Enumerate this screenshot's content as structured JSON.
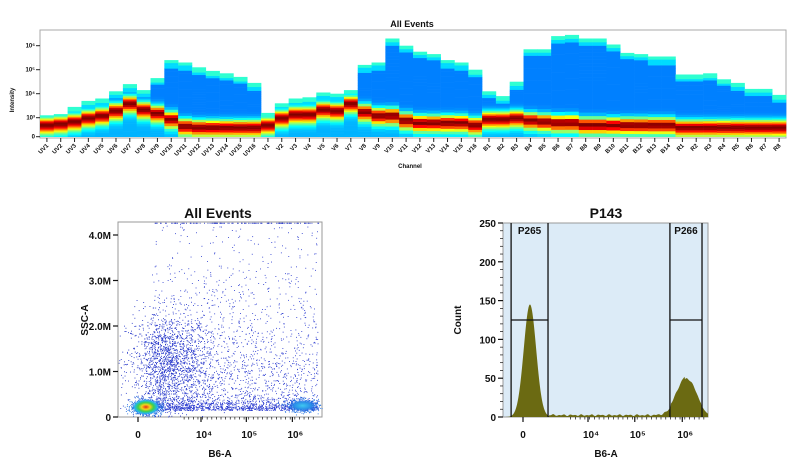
{
  "chart_data": [
    {
      "type": "heatmap",
      "title": "All Events",
      "xlabel": "Channel",
      "ylabel": "Intensity",
      "y_scale": "log",
      "y_ticks": [
        "0",
        "10³",
        "10⁴",
        "10⁵",
        "10⁶"
      ],
      "colormap": "jet",
      "channels": [
        "UV1",
        "UV2",
        "UV3",
        "UV4",
        "UV5",
        "UV6",
        "UV7",
        "UV8",
        "UV9",
        "UV10",
        "UV11",
        "UV12",
        "UV13",
        "UV14",
        "UV15",
        "UV16",
        "V1",
        "V2",
        "V3",
        "V4",
        "V5",
        "V6",
        "V7",
        "V8",
        "V9",
        "V10",
        "V11",
        "V12",
        "V13",
        "V14",
        "V15",
        "V16",
        "B1",
        "B2",
        "B3",
        "B4",
        "B5",
        "B6",
        "B7",
        "B8",
        "B9",
        "B10",
        "B11",
        "B12",
        "B13",
        "B14",
        "R1",
        "R2",
        "R3",
        "R4",
        "R5",
        "R6",
        "R7",
        "R8"
      ],
      "max_log10_intensity": [
        3.1,
        3.15,
        3.45,
        3.7,
        3.8,
        4.1,
        4.4,
        4.15,
        4.65,
        5.4,
        5.3,
        5.1,
        4.95,
        4.85,
        4.7,
        4.45,
        3.2,
        3.6,
        3.8,
        3.85,
        4.05,
        4.0,
        4.15,
        5.2,
        5.3,
        6.3,
        6.0,
        5.75,
        5.65,
        5.4,
        5.3,
        5.0,
        4.1,
        3.9,
        4.5,
        5.85,
        5.85,
        6.4,
        6.45,
        6.3,
        6.3,
        6.05,
        5.7,
        5.65,
        5.55,
        5.55,
        4.8,
        4.8,
        4.85,
        4.6,
        4.45,
        4.2,
        4.2,
        3.95
      ],
      "peak_log10_intensity": [
        2.7,
        2.75,
        2.85,
        3.0,
        3.1,
        3.3,
        3.6,
        3.35,
        3.2,
        2.95,
        2.65,
        2.6,
        2.6,
        2.6,
        2.6,
        2.6,
        2.7,
        3.0,
        3.15,
        3.15,
        3.35,
        3.3,
        3.6,
        3.25,
        3.1,
        3.1,
        2.9,
        2.8,
        2.8,
        2.8,
        2.8,
        2.7,
        2.95,
        2.95,
        3.0,
        2.9,
        2.85,
        2.8,
        2.8,
        2.7,
        2.7,
        2.7,
        2.7,
        2.7,
        2.7,
        2.7,
        2.6,
        2.6,
        2.6,
        2.6,
        2.6,
        2.6,
        2.6,
        2.6
      ]
    },
    {
      "type": "scatter",
      "title": "All Events",
      "xlabel": "B6-A",
      "ylabel": "SSC-A",
      "x_scale": "biexponential",
      "x_ticks": [
        {
          "label": "0",
          "value": 0
        },
        {
          "label": "10⁴",
          "value": 10000
        },
        {
          "label": "10⁵",
          "value": 100000
        },
        {
          "label": "10⁶",
          "value": 1000000
        }
      ],
      "y_ticks": [
        {
          "label": "0",
          "value": 0
        },
        {
          "label": "1.0M",
          "value": 1000000
        },
        {
          "label": "2.0M",
          "value": 2000000
        },
        {
          "label": "3.0M",
          "value": 3000000
        },
        {
          "label": "4.0M",
          "value": 4000000
        }
      ],
      "xlim": [
        -790,
        4500000
      ],
      "ylim": [
        0,
        4200000
      ],
      "populations": [
        {
          "x": 216,
          "y": 220000,
          "density": "high"
        },
        {
          "x": 1670000,
          "y": 250000,
          "density": "medium"
        },
        {
          "x": 1500,
          "y": 1200000,
          "density": "diffuse"
        }
      ]
    },
    {
      "type": "area",
      "title": "P143",
      "xlabel": "B6-A",
      "ylabel": "Count",
      "x_scale": "biexponential",
      "x_ticks": [
        {
          "label": "0",
          "value": 0
        },
        {
          "label": "10⁴",
          "value": 10000
        },
        {
          "label": "10⁵",
          "value": 100000
        },
        {
          "label": "10⁶",
          "value": 1000000
        }
      ],
      "y_ticks": [
        {
          "label": "0",
          "value": 0
        },
        {
          "label": "50",
          "value": 50
        },
        {
          "label": "100",
          "value": 100
        },
        {
          "label": "150",
          "value": 150
        },
        {
          "label": "200",
          "value": 200
        },
        {
          "label": "250",
          "value": 250
        }
      ],
      "xlim": [
        -740,
        3500000
      ],
      "ylim": [
        0,
        250
      ],
      "peaks": [
        {
          "x": 180,
          "count": 145
        },
        {
          "x": 1260000,
          "count": 47
        }
      ],
      "baseline_count": 3,
      "gates": [
        {
          "name": "P265",
          "x_min": -350,
          "x_max": 1060,
          "level": 125
        },
        {
          "name": "P266",
          "x_min": 550000,
          "x_max": 2600000,
          "level": 125
        }
      ],
      "fill_color": "#6b6a12",
      "background_color": "#dcebf7"
    }
  ]
}
